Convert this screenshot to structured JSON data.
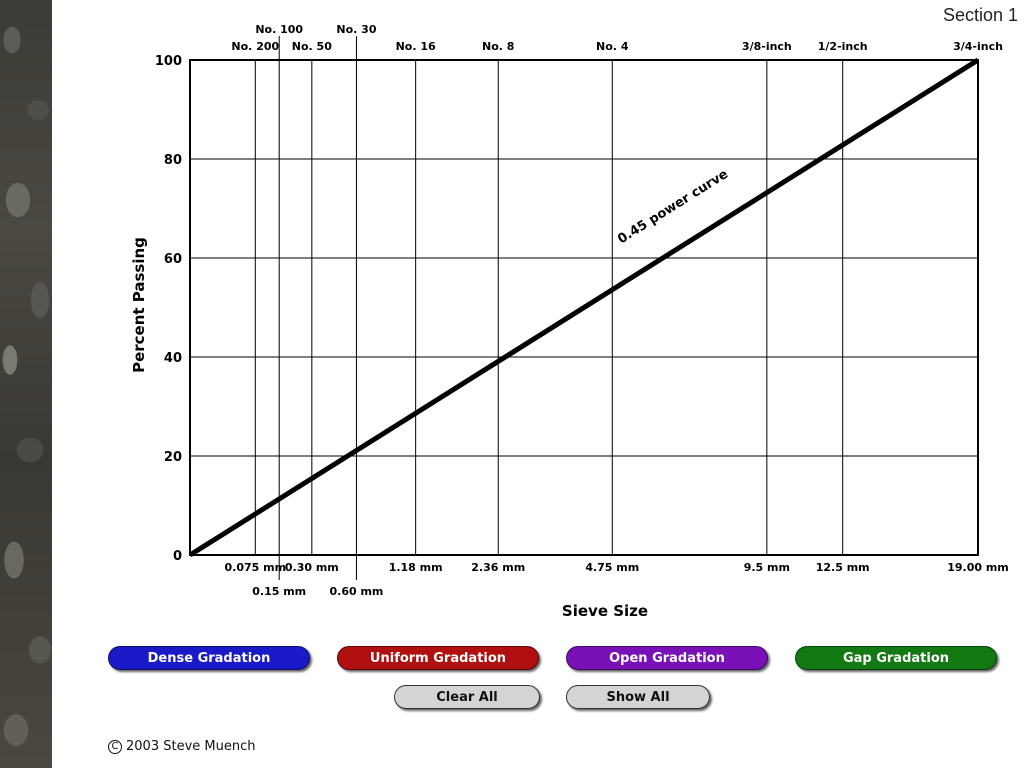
{
  "section_tag": "Section 1",
  "chart_data": {
    "type": "line",
    "xlabel": "Sieve Size",
    "ylabel": "Percent Passing",
    "ylim": [
      0,
      100
    ],
    "yticks": [
      0,
      20,
      40,
      60,
      80,
      100
    ],
    "x_scale": "0.45 power",
    "grid": true,
    "sieves": [
      {
        "mm": 0.075,
        "name": "No. 200",
        "mm_label": "0.075 mm",
        "name_row": 2,
        "mm_row": 1
      },
      {
        "mm": 0.15,
        "name": "No. 100",
        "mm_label": "0.15 mm",
        "name_row": 1,
        "mm_row": 2
      },
      {
        "mm": 0.3,
        "name": "No. 50",
        "mm_label": "0.30 mm",
        "name_row": 2,
        "mm_row": 1
      },
      {
        "mm": 0.6,
        "name": "No. 30",
        "mm_label": "0.60 mm",
        "name_row": 1,
        "mm_row": 2
      },
      {
        "mm": 1.18,
        "name": "No. 16",
        "mm_label": "1.18 mm",
        "name_row": 2,
        "mm_row": 1
      },
      {
        "mm": 2.36,
        "name": "No. 8",
        "mm_label": "2.36 mm",
        "name_row": 2,
        "mm_row": 1
      },
      {
        "mm": 4.75,
        "name": "No. 4",
        "mm_label": "4.75 mm",
        "name_row": 2,
        "mm_row": 1
      },
      {
        "mm": 9.5,
        "name": "3/8-inch",
        "mm_label": "9.5 mm",
        "name_row": 2,
        "mm_row": 1
      },
      {
        "mm": 12.5,
        "name": "1/2-inch",
        "mm_label": "12.5 mm",
        "name_row": 2,
        "mm_row": 1
      },
      {
        "mm": 19.0,
        "name": "3/4-inch",
        "mm_label": "19.00 mm",
        "name_row": 2,
        "mm_row": 1
      }
    ],
    "series": [
      {
        "name": "0.45 power curve",
        "x": [
          0,
          19.0
        ],
        "y": [
          0,
          100
        ]
      }
    ],
    "annotation": "0.45 power curve"
  },
  "buttons": {
    "dense": {
      "label": "Dense Gradation",
      "color": "#1a1ac8"
    },
    "uniform": {
      "label": "Uniform Gradation",
      "color": "#b01010"
    },
    "open": {
      "label": "Open Gradation",
      "color": "#7a10b8"
    },
    "gap": {
      "label": "Gap Gradation",
      "color": "#137a13"
    },
    "clear": {
      "label": "Clear All",
      "color": "#d4d4d4"
    },
    "show": {
      "label": "Show All",
      "color": "#d4d4d4"
    }
  },
  "copyright": {
    "symbol": "C",
    "text": "2003  Steve Muench"
  }
}
